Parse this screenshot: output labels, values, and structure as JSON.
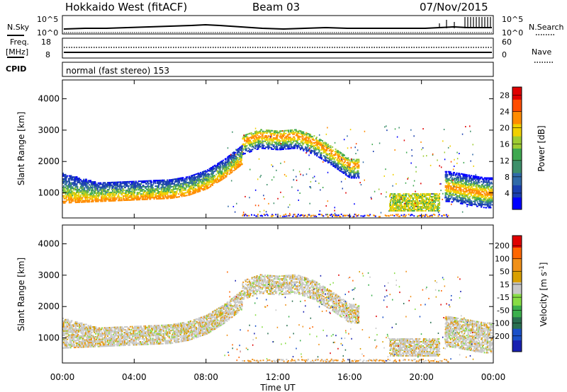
{
  "header": {
    "station": "Hokkaido West (fitACF)",
    "beam": "Beam 03",
    "date": "07/Nov/2015"
  },
  "noise_panel": {
    "left_label": "N.Sky",
    "right_label": "N.Search",
    "ticks_left": [
      "10^5",
      "10^0"
    ],
    "ticks_right": [
      "10^5",
      "10^0"
    ]
  },
  "freq_panel": {
    "left_label_1": "Freq.",
    "left_label_2": "[MHz]",
    "right_label": "Nave",
    "ticks_left": [
      "18",
      "8"
    ],
    "ticks_right": [
      "60",
      "0"
    ]
  },
  "cpid_panel": {
    "label": "CPID",
    "text": "normal (fast stereo) 153"
  },
  "colors": {
    "power": [
      "#0000ff",
      "#1a3fb0",
      "#306aa8",
      "#3d8f6a",
      "#3fa850",
      "#9ecc32",
      "#f0d000",
      "#ff8c00",
      "#ff4d00",
      "#e00000"
    ],
    "velocity": [
      "#1820b0",
      "#1a50c8",
      "#2a7050",
      "#3cb04c",
      "#88dd44",
      "#c8c8c8",
      "#d8a000",
      "#f09018",
      "#ff6600",
      "#e00000"
    ]
  },
  "chart_data": [
    {
      "type": "heatmap",
      "name": "power",
      "xlabel": "",
      "ylabel": "Slant Range [km]",
      "x_ticks": [],
      "y_ticks": [
        "1000",
        "2000",
        "3000",
        "4000"
      ],
      "ylim": [
        200,
        4600
      ],
      "xlim": [
        "00:00",
        "24:00"
      ],
      "colorbar": {
        "label": "Power [dB]",
        "ticks": [
          "4",
          "8",
          "12",
          "16",
          "20",
          "24",
          "28"
        ],
        "range": [
          0,
          30
        ]
      },
      "echo_traces": [
        {
          "feature": "main scatter band lower edge (km)",
          "x_hours": [
            0,
            2,
            4,
            6,
            7,
            8,
            9,
            10
          ],
          "y_km": [
            700,
            750,
            800,
            850,
            950,
            1150,
            1500,
            1950
          ]
        },
        {
          "feature": "main scatter band upper edge (km)",
          "x_hours": [
            0,
            2,
            4,
            6,
            7,
            8,
            9,
            10
          ],
          "y_km": [
            1650,
            1350,
            1400,
            1450,
            1550,
            1750,
            2100,
            2550
          ]
        },
        {
          "feature": "ridge (km)",
          "x_hours": [
            10,
            11,
            12,
            13,
            14,
            15,
            16
          ],
          "y_km": [
            2700,
            2900,
            2850,
            2900,
            2700,
            2350,
            1950
          ]
        },
        {
          "feature": "evening patch (km)",
          "x_hours": [
            18.5,
            19.5,
            20.5
          ],
          "y_km": [
            700,
            700,
            700
          ]
        },
        {
          "feature": "late scatter (km)",
          "x_hours": [
            21.5,
            22.5,
            23.5
          ],
          "y_km": [
            1200,
            1100,
            1000
          ]
        }
      ]
    },
    {
      "type": "heatmap",
      "name": "velocity",
      "xlabel": "Time UT",
      "ylabel": "Slant Range [km]",
      "x_ticks": [
        "00:00",
        "04:00",
        "08:00",
        "12:00",
        "16:00",
        "20:00",
        "00:00"
      ],
      "y_ticks": [
        "1000",
        "2000",
        "3000",
        "4000"
      ],
      "ylim": [
        200,
        4600
      ],
      "xlim": [
        "00:00",
        "24:00"
      ],
      "colorbar": {
        "label": "Velocity [m s^-1]",
        "ticks": [
          "200",
          "100",
          "50",
          "15",
          "-15",
          "-50",
          "-100",
          "-200"
        ],
        "range": [
          -250,
          250
        ]
      }
    }
  ]
}
